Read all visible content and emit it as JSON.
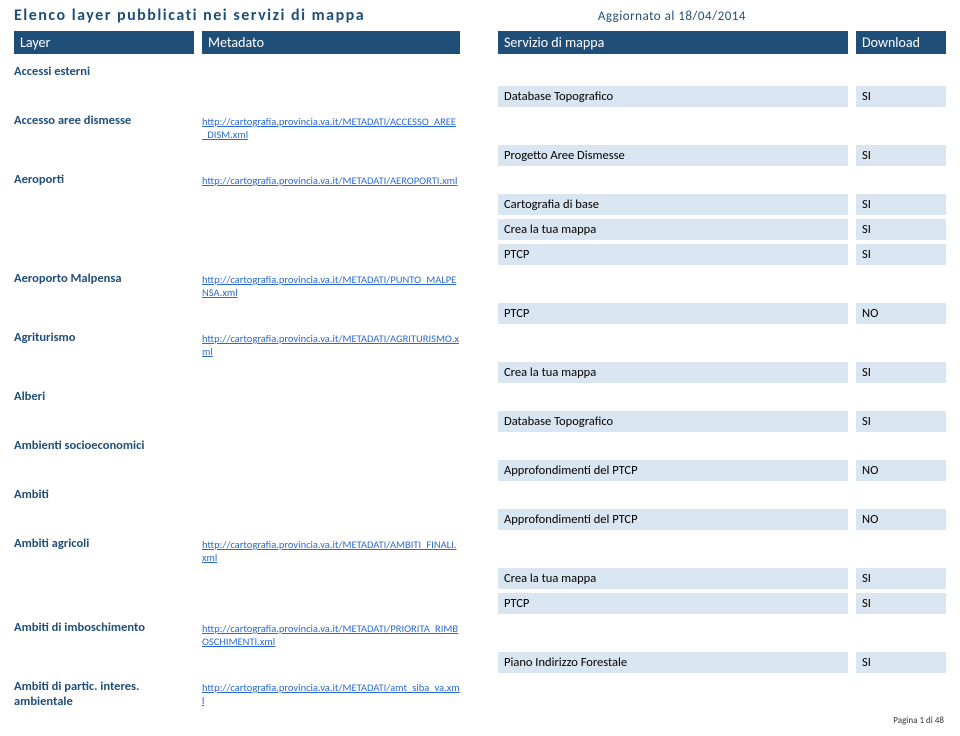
{
  "colors": {
    "header_bg": "#1f4e79",
    "cell_bg_grey": "#d9e5f1",
    "link_color": "#2a6bd1",
    "title_color": "#1f4e79"
  },
  "title": "Elenco layer pubblicati nei servizi di mappa",
  "date_label": "Aggiornato al 18/04/2014",
  "headers": {
    "layer": "Layer",
    "metadato": "Metadato",
    "servizio": "Servizio di mappa",
    "download": "Download"
  },
  "rows": [
    {
      "layer": "Accessi esterni",
      "meta": "",
      "serv": "",
      "dl": "",
      "grey": false
    },
    {
      "layer": "",
      "meta": "",
      "serv": "Database Topografico",
      "dl": "SI",
      "grey": true
    },
    {
      "layer": "Accesso aree dismesse",
      "meta": "http://cartografia.provincia.va.it/METADATI/ACCESSO_AREE_DISM.xml",
      "serv": "",
      "dl": "",
      "grey": false
    },
    {
      "layer": "",
      "meta": "",
      "serv": "Progetto Aree Dismesse",
      "dl": "SI",
      "grey": true
    },
    {
      "layer": "Aeroporti",
      "meta": "http://cartografia.provincia.va.it/METADATI/AEROPORTI.xml",
      "serv": "",
      "dl": "",
      "grey": false
    },
    {
      "layer": "",
      "meta": "",
      "serv": "Cartografia di base",
      "dl": "SI",
      "grey": true
    },
    {
      "layer": "",
      "meta": "",
      "serv": "Crea la tua mappa",
      "dl": "SI",
      "grey": true
    },
    {
      "layer": "",
      "meta": "",
      "serv": "PTCP",
      "dl": "SI",
      "grey": true
    },
    {
      "layer": "Aeroporto Malpensa",
      "meta": "http://cartografia.provincia.va.it/METADATI/PUNTO_MALPENSA.xml",
      "serv": "",
      "dl": "",
      "grey": false
    },
    {
      "layer": "",
      "meta": "",
      "serv": "PTCP",
      "dl": "NO",
      "grey": true
    },
    {
      "layer": "Agriturismo",
      "meta": "http://cartografia.provincia.va.it/METADATI/AGRITURISMO.xml",
      "serv": "",
      "dl": "",
      "grey": false
    },
    {
      "layer": "",
      "meta": "",
      "serv": "Crea la tua mappa",
      "dl": "SI",
      "grey": true
    },
    {
      "layer": "Alberi",
      "meta": "",
      "serv": "",
      "dl": "",
      "grey": false
    },
    {
      "layer": "",
      "meta": "",
      "serv": "Database Topografico",
      "dl": "SI",
      "grey": true
    },
    {
      "layer": "Ambienti socioeconomici",
      "meta": "",
      "serv": "",
      "dl": "",
      "grey": false
    },
    {
      "layer": "",
      "meta": "",
      "serv": "Approfondimenti del PTCP",
      "dl": "NO",
      "grey": true
    },
    {
      "layer": "Ambiti",
      "meta": "",
      "serv": "",
      "dl": "",
      "grey": false
    },
    {
      "layer": "",
      "meta": "",
      "serv": "Approfondimenti del PTCP",
      "dl": "NO",
      "grey": true
    },
    {
      "layer": "Ambiti agricoli",
      "meta": "http://cartografia.provincia.va.it/METADATI/AMBITI_FINALI.xml",
      "serv": "",
      "dl": "",
      "grey": false
    },
    {
      "layer": "",
      "meta": "",
      "serv": "Crea la tua mappa",
      "dl": "SI",
      "grey": true
    },
    {
      "layer": "",
      "meta": "",
      "serv": "PTCP",
      "dl": "SI",
      "grey": true
    },
    {
      "layer": "Ambiti di imboschimento",
      "meta": "http://cartografia.provincia.va.it/METADATI/PRIORITA_RIMBOSCHIMENTI.xml",
      "serv": "",
      "dl": "",
      "grey": false
    },
    {
      "layer": "",
      "meta": "",
      "serv": "Piano Indirizzo Forestale",
      "dl": "SI",
      "grey": true
    },
    {
      "layer": "Ambiti di partic. interes. ambientale",
      "meta": "http://cartografia.provincia.va.it/METADATI/amt_siba_va.xml",
      "serv": "",
      "dl": "",
      "grey": false
    }
  ],
  "footer": "Pagina 1 di 48"
}
